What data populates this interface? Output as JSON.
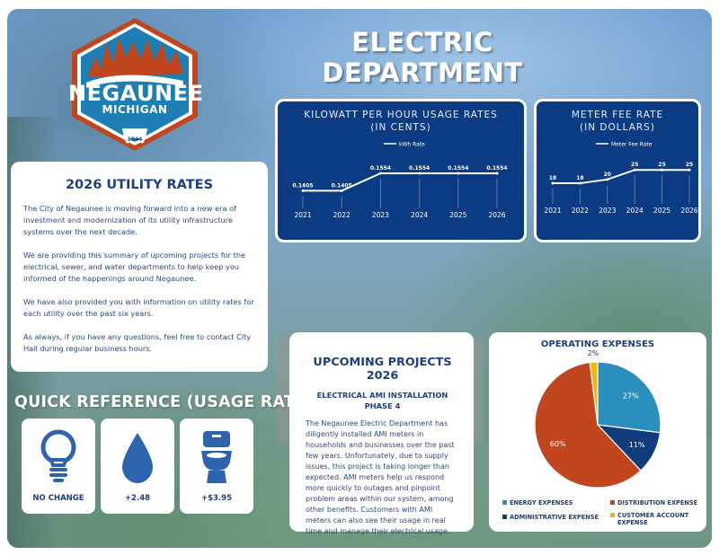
{
  "header": {
    "title": "ELECTRIC DEPARTMENT"
  },
  "logo": {
    "name": "NEGAUNEE",
    "state": "MICHIGAN",
    "year": "1844"
  },
  "rates_card": {
    "title": "2026 UTILITY RATES",
    "paragraphs": [
      "The City of Negaunee is moving forward into a new era of investment and modernization of its utility infrastructure systems over the next decade.",
      "We are providing this summary of upcoming projects for the electrical, sewer, and water departments to help keep you informed of the happenings around Negaunee.",
      "We have also provided you with information on utility rates for each utility over the past six years.",
      "As always, if you have any questions, feel free to contact City Hall during regular business hours."
    ]
  },
  "quick_reference": {
    "title": "QUICK REFERENCE (USAGE RATES)",
    "items": [
      {
        "icon": "lightbulb-icon",
        "value": "NO CHANGE"
      },
      {
        "icon": "water-drop-icon",
        "value": "+2.48"
      },
      {
        "icon": "toilet-icon",
        "value": "+$3.95"
      }
    ]
  },
  "projects": {
    "title": "UPCOMING PROJECTS 2026",
    "subtitle_1": "ELECTRICAL AMI INSTALLATION",
    "subtitle_2": "PHASE 4",
    "body": "The Negaunee Electric Department has diligently installed AMI meters in households and businesses over the past few years. Unfortunately, due to supply issues, this project is taking longer than expected. AMI meters help us respond more quickly to outages and pinpoint problem areas within our system, among other benefits. Customers with AMI meters can also see their usage in real time and manage their electrical usage."
  },
  "colors": {
    "navy": "#0b3b82",
    "orange": "#c1461e",
    "teal": "#2a8fbd",
    "dark_blue": "#0f3c7d",
    "yellow": "#f2b705"
  },
  "chart_data": [
    {
      "type": "line",
      "title_line1": "KILOWATT PER HOUR USAGE RATES",
      "title_line2": "(IN CENTS)",
      "series": [
        {
          "name": "kWh Rate",
          "values": [
            0.1405,
            0.1405,
            0.1554,
            0.1554,
            0.1554,
            0.1554
          ]
        }
      ],
      "categories": [
        "2021",
        "2022",
        "2023",
        "2024",
        "2025",
        "2026"
      ],
      "labels": [
        "0.1405",
        "0.1405",
        "0.1554",
        "0.1554",
        "0.1554",
        "0.1554"
      ],
      "ylim": [
        0.13,
        0.16
      ],
      "legend": "top",
      "grid": false
    },
    {
      "type": "line",
      "title_line1": "METER FEE RATE",
      "title_line2": "(IN DOLLARS)",
      "series": [
        {
          "name": "Meter Fee Rate",
          "values": [
            18,
            18,
            20,
            25,
            25,
            25
          ]
        }
      ],
      "categories": [
        "2021",
        "2022",
        "2023",
        "2024",
        "2025",
        "2026"
      ],
      "labels": [
        "18",
        "18",
        "20",
        "25",
        "25",
        "25"
      ],
      "ylim": [
        10,
        27
      ],
      "legend": "top",
      "grid": false
    },
    {
      "type": "pie",
      "title": "OPERATING EXPENSES",
      "slices": [
        {
          "name": "ENERGY EXPENSES",
          "value": 27,
          "label": "27%",
          "color": "#2a8fbd"
        },
        {
          "name": "ADMINISTRATIVE EXPENSE",
          "value": 11,
          "label": "11%",
          "color": "#0f3c7d"
        },
        {
          "name": "DISTRIBUTION EXPENSE",
          "value": 60,
          "label": "60%",
          "color": "#c1461e"
        },
        {
          "name": "CUSTOMER ACCOUNT EXPENSE",
          "value": 2,
          "label": "2%",
          "color": "#f2b705"
        }
      ],
      "legend": "bottom"
    }
  ]
}
